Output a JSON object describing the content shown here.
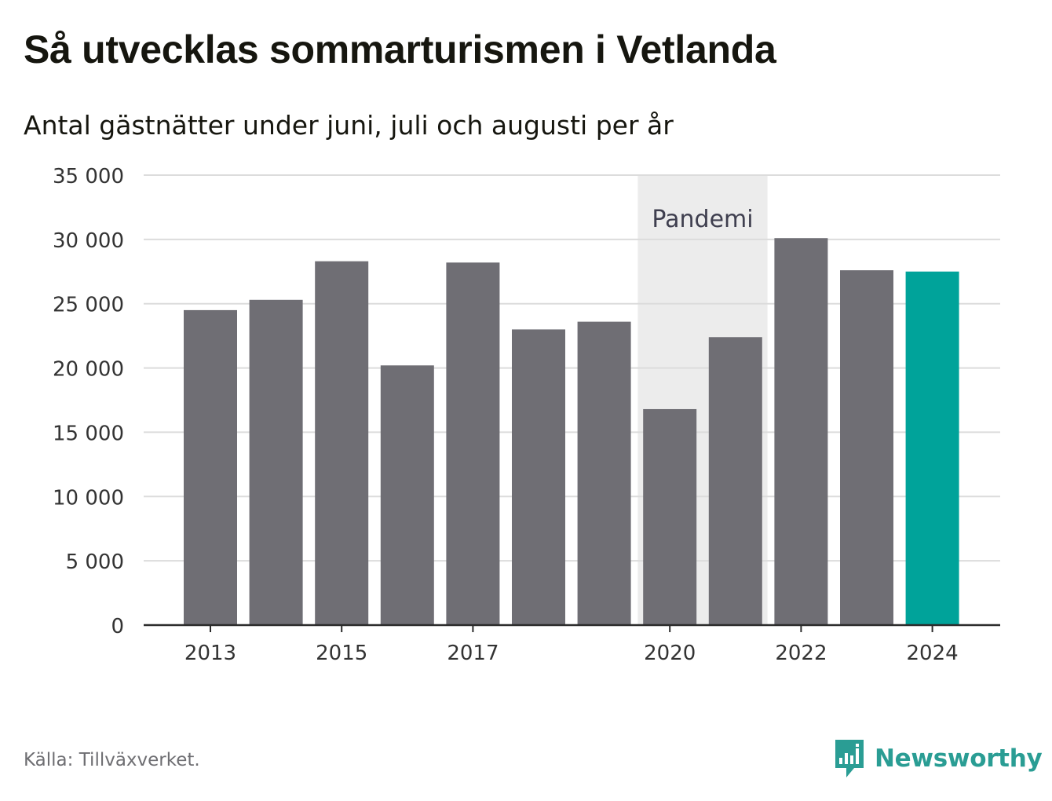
{
  "header": {
    "title": "Så utvecklas sommarturismen i Vetlanda",
    "subtitle": "Antal gästnätter under juni, juli och augusti per år"
  },
  "footer": {
    "source": "Källa: Tillväxverket.",
    "brand_name": "Newsworthy",
    "brand_icon": "newsworthy-logo-icon"
  },
  "colors": {
    "bar": "#6f6e74",
    "highlight": "#00a39a",
    "shade": "#ececec",
    "grid": "#dcdcdc",
    "axis": "#2b2b2b",
    "text": "#333333",
    "brand": "#2a9d94"
  },
  "chart_data": {
    "type": "bar",
    "categories": [
      "2013",
      "2014",
      "2015",
      "2016",
      "2017",
      "2018",
      "2019",
      "2020",
      "2021",
      "2022",
      "2023",
      "2024"
    ],
    "values": [
      24500,
      25300,
      28300,
      20200,
      28200,
      23000,
      23600,
      16800,
      22400,
      30100,
      27600,
      27500
    ],
    "highlight_category": "2024",
    "x_tick_labels": [
      "2013",
      "2015",
      "2017",
      "2020",
      "2022",
      "2024"
    ],
    "y_ticks": [
      0,
      5000,
      10000,
      15000,
      20000,
      25000,
      30000,
      35000
    ],
    "y_tick_labels": [
      "0",
      "5 000",
      "10 000",
      "15 000",
      "20 000",
      "25 000",
      "30 000",
      "35 000"
    ],
    "ylim": [
      0,
      35000
    ],
    "grid": true,
    "annotation": {
      "label": "Pandemi",
      "from": "2020",
      "to": "2021"
    }
  }
}
